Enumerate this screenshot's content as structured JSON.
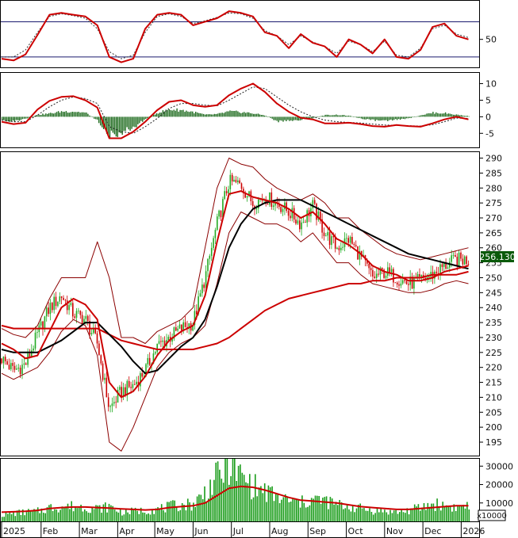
{
  "chart_data": [
    {
      "type": "line",
      "panel": "rsi",
      "series": [
        {
          "values": [
            28,
            26,
            33,
            55,
            78,
            80,
            78,
            76,
            66,
            30,
            24,
            28,
            62,
            78,
            80,
            78,
            66,
            70,
            74,
            82,
            80,
            76,
            58,
            54,
            40,
            56,
            46,
            42,
            30,
            50,
            44,
            34,
            50,
            30,
            28,
            38,
            64,
            68,
            54,
            50
          ]
        }
      ],
      "signal_values": [
        30,
        30,
        38,
        58,
        76,
        79,
        77,
        74,
        62,
        36,
        28,
        32,
        58,
        76,
        79,
        76,
        68,
        71,
        75,
        80,
        79,
        74,
        60,
        54,
        44,
        54,
        47,
        42,
        34,
        48,
        44,
        36,
        48,
        32,
        30,
        40,
        62,
        66,
        56,
        52
      ],
      "reference_lines": [
        30,
        70
      ],
      "y_ticks": [
        50
      ],
      "ylim": [
        20,
        92
      ]
    },
    {
      "type": "bar",
      "panel": "macd",
      "histogram": [
        -1.0,
        -1.4,
        -0.6,
        0.6,
        1.0,
        1.6,
        1.6,
        1.2,
        -1.2,
        -5.5,
        -4.8,
        -3.2,
        -0.6,
        1.2,
        2.2,
        2.0,
        1.4,
        0.6,
        0.8,
        1.6,
        1.4,
        1.0,
        0.4,
        -1.4,
        -1.2,
        -0.9,
        -0.4,
        0.5,
        0.6,
        0.3,
        -0.5,
        -1.0,
        -1.3,
        -0.8,
        -0.5,
        0.5,
        1.2,
        1.1,
        0.6,
        0.2
      ],
      "series": [
        {
          "values": [
            -1.5,
            -2.2,
            -1.8,
            2.2,
            4.8,
            6.0,
            6.2,
            5.0,
            2.8,
            -6.5,
            -6.5,
            -4.5,
            -1.5,
            2.0,
            4.5,
            5.0,
            3.5,
            3.0,
            3.5,
            6.5,
            8.5,
            10.0,
            7.5,
            4.0,
            1.5,
            -0.3,
            -0.8,
            -2.0,
            -2.0,
            -1.8,
            -2.2,
            -2.8,
            -3.0,
            -2.5,
            -2.8,
            -3.0,
            -2.0,
            -0.8,
            0.0,
            -0.8
          ]
        },
        {
          "values": [
            -1.0,
            -1.5,
            -1.5,
            0.5,
            3.0,
            5.0,
            6.0,
            5.5,
            4.0,
            -3.0,
            -4.5,
            -5.0,
            -3.0,
            -0.5,
            2.5,
            4.0,
            4.0,
            3.5,
            3.3,
            5.0,
            7.0,
            9.0,
            8.5,
            6.0,
            3.5,
            1.5,
            0.0,
            -1.0,
            -1.5,
            -1.7,
            -1.9,
            -2.2,
            -2.5,
            -2.6,
            -2.7,
            -2.8,
            -2.4,
            -1.5,
            -0.4,
            -0.5
          ]
        }
      ],
      "y_ticks": [
        10,
        5,
        0,
        -5
      ],
      "ylim": [
        -9,
        13
      ]
    },
    {
      "type": "line",
      "panel": "price",
      "series": [
        {
          "values": [
            223,
            219,
            221,
            231,
            240,
            244,
            238,
            236,
            228,
            206,
            212,
            214,
            219,
            227,
            230,
            233,
            235,
            250,
            268,
            282,
            281,
            275,
            277,
            275,
            272,
            268,
            274,
            265,
            260,
            263,
            257,
            250,
            252,
            250,
            248,
            249,
            251,
            254,
            256,
            256
          ]
        },
        {
          "values": [
            228,
            226,
            223,
            224,
            232,
            240,
            243,
            241,
            236,
            215,
            210,
            212,
            217,
            224,
            229,
            232,
            234,
            244,
            262,
            278,
            279,
            277,
            276,
            275,
            273,
            270,
            272,
            268,
            263,
            261,
            258,
            254,
            252,
            251,
            249,
            249,
            250,
            252,
            253,
            254
          ]
        },
        {
          "values": [
            226,
            225,
            225,
            225,
            227,
            229,
            232,
            235,
            235,
            231,
            227,
            222,
            218,
            219,
            223,
            227,
            230,
            236,
            247,
            260,
            268,
            273,
            275,
            276,
            276,
            276,
            274,
            272,
            270,
            268,
            266,
            264,
            262,
            260,
            258,
            257,
            256,
            255,
            254,
            253
          ]
        },
        {
          "values": [
            234,
            233,
            233,
            233,
            233,
            233,
            233,
            233,
            233,
            231,
            229,
            228,
            227,
            226,
            226,
            226,
            226,
            227,
            228,
            230,
            233,
            236,
            239,
            241,
            243,
            244,
            245,
            246,
            247,
            248,
            248,
            249,
            249,
            250,
            250,
            250,
            251,
            251,
            251,
            252
          ]
        },
        {
          "values": [
            233,
            231,
            230,
            234,
            243,
            250,
            250,
            250,
            262,
            250,
            230,
            230,
            228,
            232,
            234,
            236,
            240,
            260,
            280,
            290,
            288,
            287,
            283,
            280,
            278,
            276,
            278,
            275,
            270,
            270,
            266,
            263,
            260,
            258,
            257,
            256,
            257,
            258,
            259,
            260
          ]
        },
        {
          "values": [
            218,
            216,
            218,
            220,
            225,
            232,
            236,
            234,
            224,
            195,
            192,
            200,
            210,
            220,
            225,
            228,
            230,
            234,
            248,
            265,
            272,
            270,
            268,
            268,
            266,
            262,
            265,
            260,
            255,
            255,
            251,
            248,
            247,
            246,
            245,
            245,
            246,
            248,
            249,
            248
          ]
        }
      ],
      "last_price_label": "256.130",
      "y_ticks": [
        290,
        285,
        280,
        275,
        270,
        265,
        260,
        255,
        250,
        245,
        240,
        235,
        230,
        225,
        220,
        215,
        210,
        205,
        200,
        195
      ],
      "ylim": [
        190.5,
        292
      ]
    },
    {
      "type": "bar",
      "panel": "volume",
      "values": [
        3500,
        4500,
        5000,
        5500,
        7500,
        8000,
        8200,
        7800,
        7000,
        8000,
        5000,
        5500,
        6000,
        6500,
        8000,
        9000,
        9500,
        16000,
        24000,
        32000,
        24000,
        19000,
        16000,
        13000,
        11000,
        10000,
        12000,
        11000,
        9000,
        8000,
        7000,
        6000,
        5500,
        5000,
        6000,
        7500,
        9500,
        8500,
        7500,
        9000
      ],
      "series": [
        {
          "values": [
            5000,
            5200,
            5500,
            6000,
            7000,
            7500,
            7800,
            7800,
            7500,
            7200,
            6800,
            6500,
            6200,
            6500,
            7500,
            8000,
            8500,
            10000,
            14000,
            18000,
            19000,
            18500,
            17000,
            15000,
            13000,
            11500,
            11000,
            10500,
            10000,
            9000,
            8000,
            7500,
            7000,
            6500,
            6500,
            7000,
            7500,
            8000,
            8500,
            8500
          ]
        }
      ],
      "y_ticks": [
        "30000",
        "20000",
        "10000"
      ],
      "ylim": [
        0,
        34000
      ],
      "unit_label": "x10000"
    }
  ],
  "x_axis": {
    "labels": [
      "2025",
      "Feb",
      "Mar",
      "Apr",
      "May",
      "Jun",
      "Jul",
      "Aug",
      "Sep",
      "Oct",
      "Nov",
      "Dec",
      "2026"
    ],
    "positions": [
      0,
      3.3,
      6.5,
      9.7,
      12.8,
      16.0,
      19.2,
      22.4,
      25.6,
      28.8,
      32.0,
      35.2,
      38.4
    ],
    "range": [
      0,
      39.5
    ]
  },
  "colors": {
    "candle_up": "#22aa22",
    "candle_down": "#cc0000",
    "ma_red": "#cc0000",
    "ma_black": "#000000",
    "band": "#8b0000",
    "histogram": "#1f6b1f",
    "volume": "#1a9c1a",
    "grid": "#1a1a6e",
    "price_tag": "#0a5a0a"
  }
}
